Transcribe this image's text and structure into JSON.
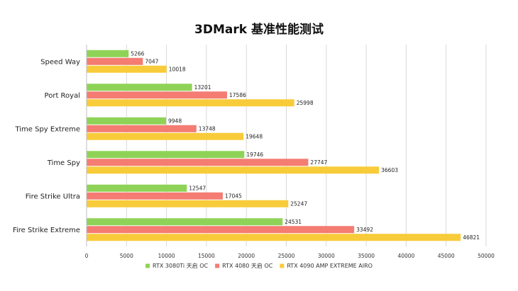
{
  "chart_data": {
    "type": "bar",
    "orientation": "horizontal",
    "title": "3DMark 基准性能测试",
    "xlabel": "",
    "ylabel": "",
    "categories": [
      "Speed Way",
      "Port Royal",
      "Time Spy Extreme",
      "Time Spy",
      "Fire Strike Ultra",
      "Fire Strike Extreme"
    ],
    "series": [
      {
        "name": "RTX 3080Ti 天启 OC",
        "color": "#8ED357",
        "values": [
          5266,
          13201,
          9948,
          19746,
          12547,
          24531
        ]
      },
      {
        "name": "RTX 4080 天启 OC",
        "color": "#F47C72",
        "values": [
          7047,
          17586,
          13748,
          27747,
          17045,
          33492
        ]
      },
      {
        "name": "RTX 4090 AMP  EXTREME AIRO",
        "color": "#F8CB3A",
        "values": [
          10018,
          25998,
          19648,
          36603,
          25247,
          46821
        ]
      }
    ],
    "xlim": [
      0,
      50000
    ],
    "xticks": [
      0,
      5000,
      10000,
      15000,
      20000,
      25000,
      30000,
      35000,
      40000,
      45000,
      50000
    ],
    "grid": true,
    "legend_position": "bottom"
  }
}
